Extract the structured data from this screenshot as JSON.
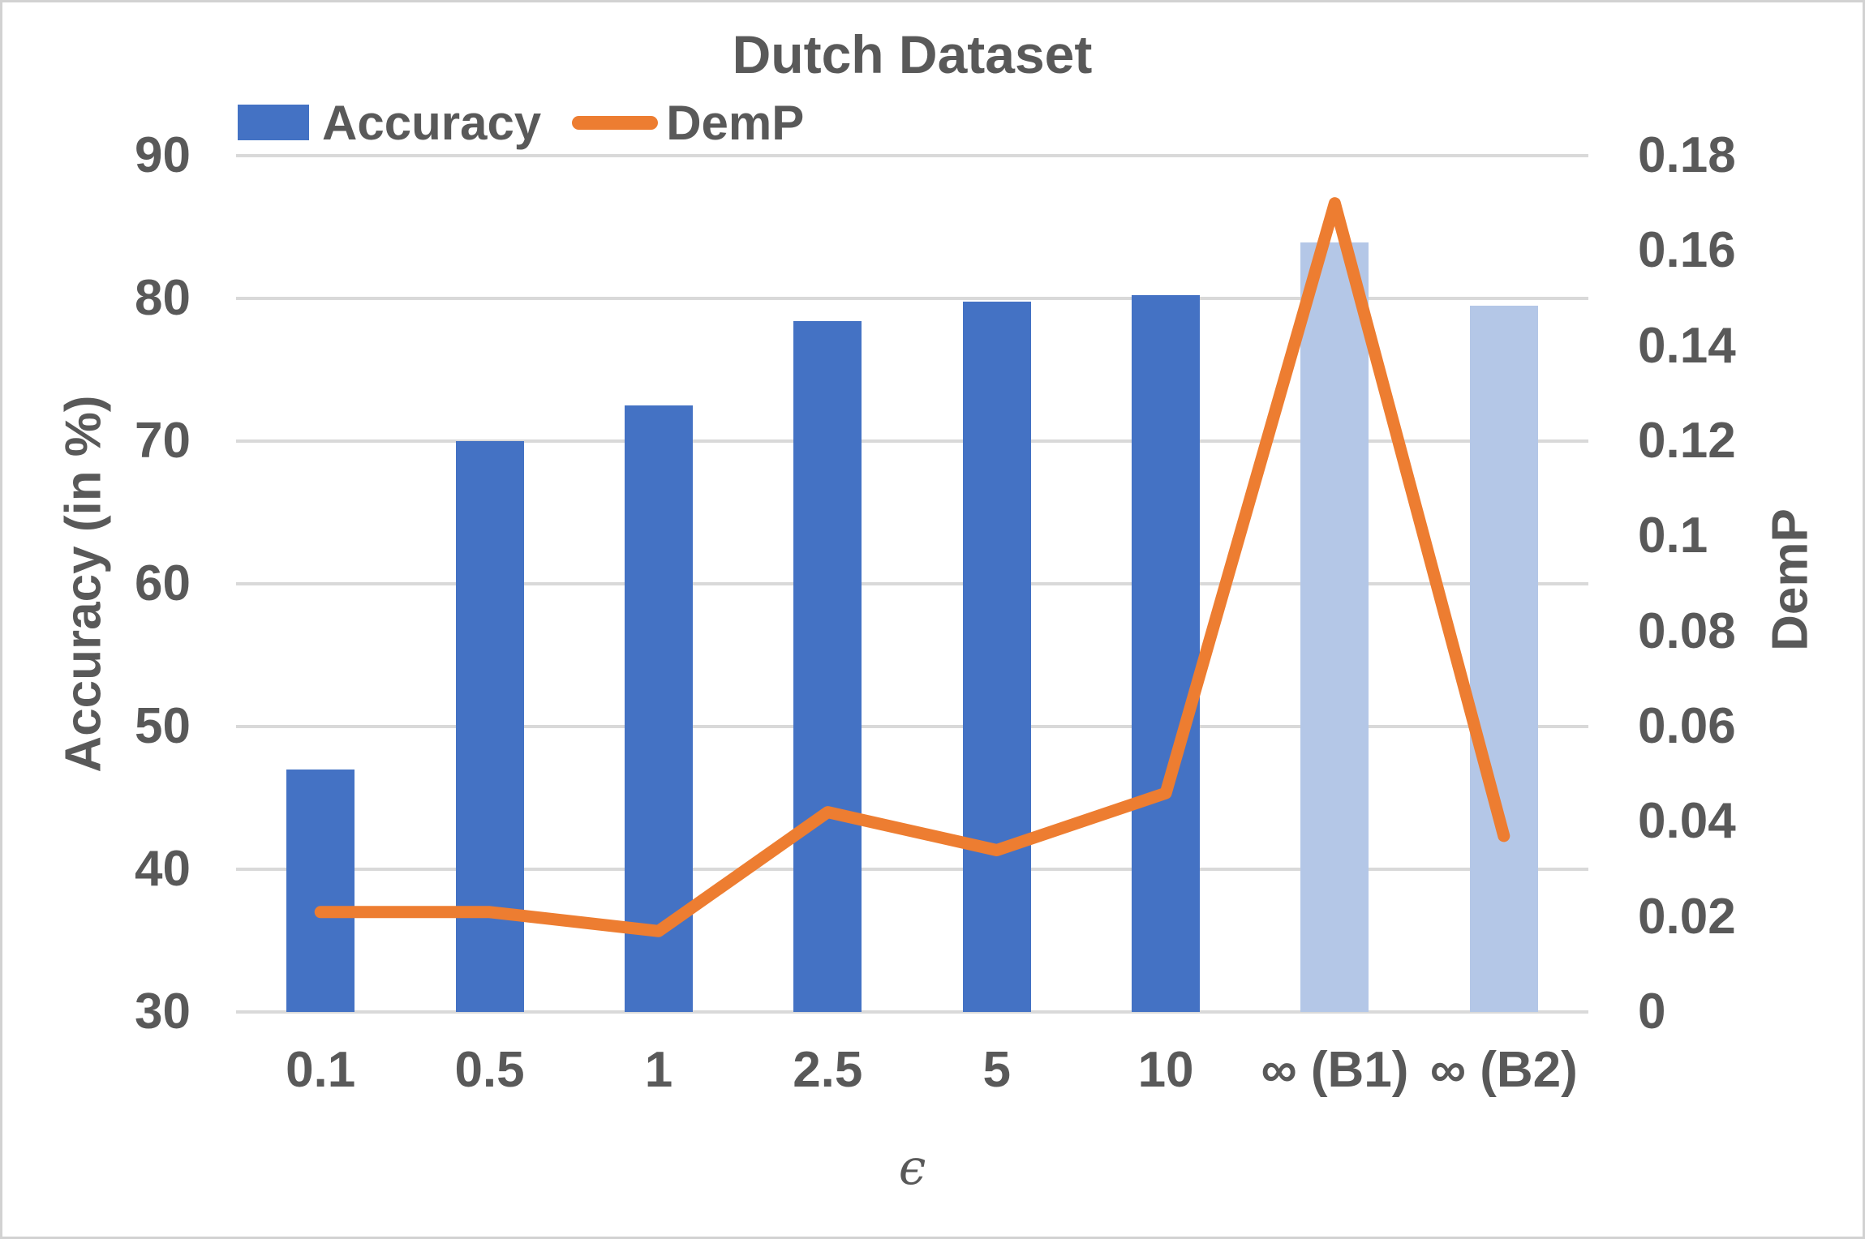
{
  "window": {
    "background": "#ffffff",
    "border_color": "#d2d2d2"
  },
  "chart_data": {
    "type": "combo-bar-line",
    "title": "Dutch Dataset",
    "xlabel": "ϵ",
    "ylabel_left": "Accuracy (in %)",
    "ylabel_right": "DemP",
    "categories": [
      "0.1",
      "0.5",
      "1",
      "2.5",
      "5",
      "10",
      "∞ (B1)",
      "∞ (B2)"
    ],
    "series": [
      {
        "name": "Accuracy",
        "type": "bar",
        "axis": "left",
        "values": [
          47,
          70,
          72.5,
          78.4,
          79.8,
          80.2,
          83.9,
          79.5
        ],
        "point_colors": [
          "#4472C4",
          "#4472C4",
          "#4472C4",
          "#4472C4",
          "#4472C4",
          "#4472C4",
          "#B4C7E7",
          "#B4C7E7"
        ]
      },
      {
        "name": "DemP",
        "type": "line",
        "axis": "right",
        "color": "#ED7D31",
        "values": [
          0.021,
          0.021,
          0.017,
          0.042,
          0.034,
          0.046,
          0.17,
          0.037
        ]
      }
    ],
    "axis_left": {
      "min": 30,
      "max": 90,
      "tick_values": [
        90,
        80,
        70,
        60,
        50,
        40,
        30
      ],
      "tick_labels": [
        "90",
        "80",
        "70",
        "60",
        "50",
        "40",
        "30"
      ]
    },
    "axis_right": {
      "min": 0,
      "max": 0.18,
      "tick_values": [
        0.18,
        0.16,
        0.14,
        0.12,
        0.1,
        0.08,
        0.06,
        0.04,
        0.02,
        0
      ],
      "tick_labels": [
        "0.18",
        "0.16",
        "0.14",
        "0.12",
        "0.1",
        "0.08",
        "0.06",
        "0.04",
        "0.02",
        "0"
      ]
    },
    "grid": true,
    "legend_position": "top-left",
    "colors": {
      "bar": "#4472C4",
      "bar_baseline": "#B4C7E7",
      "line": "#ED7D31",
      "text": "#595959",
      "gridline": "#D9D9D9"
    }
  }
}
